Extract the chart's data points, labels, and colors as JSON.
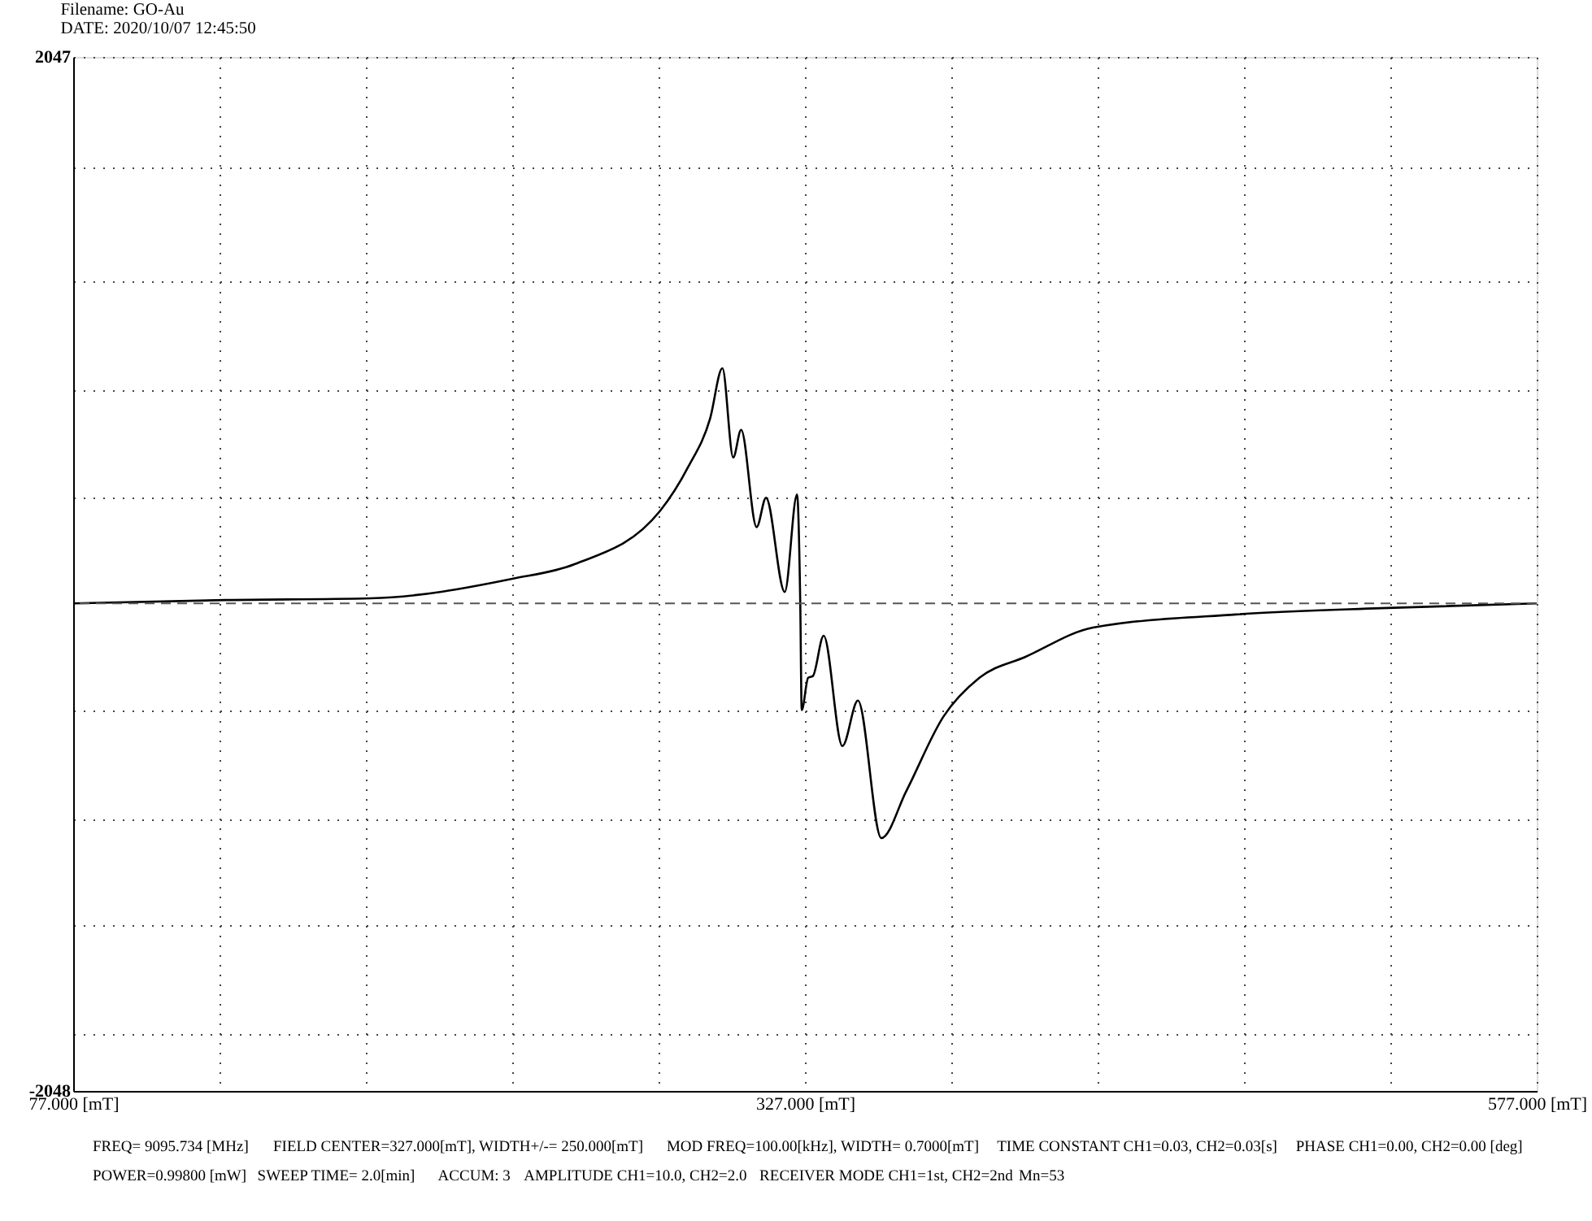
{
  "chart_data": {
    "type": "line",
    "title": "Filename: GO-Au",
    "subtitle": "DATE: 2020/10/07 12:45:50",
    "x": [
      77,
      129.1,
      178.6,
      227.0,
      248.3,
      277.5,
      287.1,
      294.6,
      298.8,
      302.5,
      305.2,
      310.5,
      313.7,
      320.1,
      324.3,
      325.4,
      325.9,
      328.1,
      329.7,
      333.4,
      339.8,
      345.1,
      353.1,
      361.6,
      374.3,
      386.6,
      402.5,
      425.4,
      474.3,
      523.8,
      577
    ],
    "series": [
      {
        "color": "#000000",
        "values": [
          -117,
          -104,
          -97,
          -20,
          38,
          249,
          423,
          615,
          814,
          461,
          570,
          185,
          301,
          -72,
          314,
          -117,
          -540,
          -412,
          -405,
          -245,
          -682,
          -502,
          -1047,
          -861,
          -566,
          -412,
          -328,
          -213,
          -161,
          -136,
          -117
        ]
      }
    ],
    "xlim": [
      77,
      577
    ],
    "xticks": [
      {
        "value": 77,
        "label": "77.000 [mT]"
      },
      {
        "value": 127,
        "label": null
      },
      {
        "value": 177,
        "label": null
      },
      {
        "value": 227,
        "label": null
      },
      {
        "value": 277,
        "label": null
      },
      {
        "value": 327,
        "label": "327.000 [mT]"
      },
      {
        "value": 377,
        "label": null
      },
      {
        "value": 427,
        "label": null
      },
      {
        "value": 477,
        "label": null
      },
      {
        "value": 527,
        "label": null
      },
      {
        "value": 577,
        "label": "577.000 [mT]"
      }
    ],
    "ylim": [
      -2048,
      2047
    ],
    "yticks": [
      -2048,
      {
        "value": -1824,
        "label": null
      },
      {
        "value": -1394,
        "label": null
      },
      {
        "value": -970,
        "label": null
      },
      {
        "value": -540,
        "label": null
      },
      {
        "value": 301,
        "label": null
      },
      {
        "value": 724,
        "label": null
      },
      {
        "value": 1161,
        "label": null
      },
      {
        "value": 1610,
        "label": null
      },
      2047
    ],
    "ref_lines": [
      {
        "axis": "y",
        "value": -117,
        "line_style": "dashed",
        "color": "#555555"
      }
    ],
    "grid": true,
    "marker": "none",
    "line_style": "solid",
    "annotations": [
      "FREQ= 9095.734 [MHz]",
      "FIELD CENTER=327.000[mT], WIDTH+/-= 250.000[mT]",
      "MOD FREQ=100.00[kHz], WIDTH= 0.7000[mT]",
      "TIME CONSTANT CH1=0.03, CH2=0.03[s]",
      "PHASE CH1=0.00, CH2=0.00 [deg]",
      "POWER=0.99800 [mW]",
      "SWEEP TIME= 2.0[min]",
      "ACCUM: 3",
      "AMPLITUDE CH1=10.0, CH2=2.0",
      "RECEIVER MODE CH1=1st, CH2=2nd",
      "Mn=53"
    ]
  }
}
